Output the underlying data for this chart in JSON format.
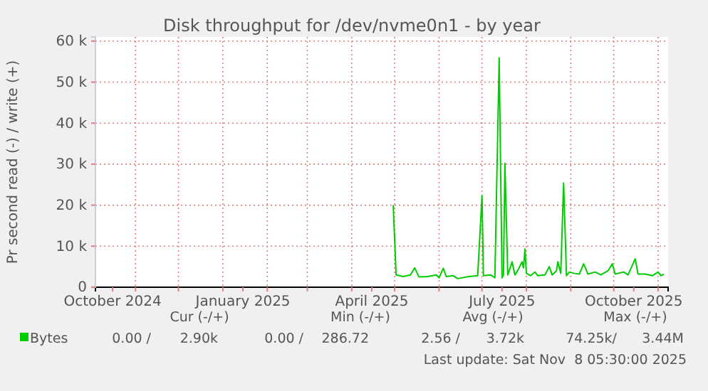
{
  "chart_data": {
    "type": "line",
    "title": "Disk throughput for /dev/nvme0n1 - by year",
    "ylabel": "Pr second read (-) / write (+)",
    "xlim": [
      "2024-10-04",
      "2025-11-08"
    ],
    "xticks": [
      {
        "value": "2024-10-16",
        "label": "October 2024"
      },
      {
        "value": "2024-11-01",
        "label": null
      },
      {
        "value": "2024-12-01",
        "label": null
      },
      {
        "value": "2025-01-15",
        "label": "January 2025"
      },
      {
        "value": "2025-01-01",
        "label": null
      },
      {
        "value": "2025-02-01",
        "label": null
      },
      {
        "value": "2025-03-01",
        "label": null
      },
      {
        "value": "2025-04-15",
        "label": "April 2025"
      },
      {
        "value": "2025-04-01",
        "label": null
      },
      {
        "value": "2025-05-01",
        "label": null
      },
      {
        "value": "2025-06-01",
        "label": null
      },
      {
        "value": "2025-07-15",
        "label": "July 2025"
      },
      {
        "value": "2025-07-01",
        "label": null
      },
      {
        "value": "2025-08-01",
        "label": null
      },
      {
        "value": "2025-09-01",
        "label": null
      },
      {
        "value": "2025-10-15",
        "label": "October 2025"
      },
      {
        "value": "2025-10-01",
        "label": null
      },
      {
        "value": "2025-11-01",
        "label": null
      }
    ],
    "ylim": [
      0,
      61000
    ],
    "yticks": [
      0,
      {
        "value": 10000,
        "label": "10 k"
      },
      {
        "value": 20000,
        "label": "20 k"
      },
      {
        "value": 30000,
        "label": "30 k"
      },
      {
        "value": 40000,
        "label": "40 k"
      },
      {
        "value": 50000,
        "label": "50 k"
      },
      {
        "value": 60000,
        "label": "60 k"
      }
    ],
    "grid": true,
    "legend": "bottom",
    "marker": "none",
    "line_style": "solid",
    "x": [
      "2025-04-30",
      "2025-05-02",
      "2025-05-07",
      "2025-05-12",
      "2025-05-15",
      "2025-05-18",
      "2025-05-24",
      "2025-05-30",
      "2025-06-01",
      "2025-06-04",
      "2025-06-06",
      "2025-06-11",
      "2025-06-14",
      "2025-06-22",
      "2025-06-28",
      "2025-07-01",
      "2025-07-02",
      "2025-07-07",
      "2025-07-10",
      "2025-07-13",
      "2025-07-15",
      "2025-07-16",
      "2025-07-17",
      "2025-07-19",
      "2025-07-20",
      "2025-07-22",
      "2025-07-24",
      "2025-07-26",
      "2025-07-29",
      "2025-07-30",
      "2025-07-31",
      "2025-08-01",
      "2025-08-04",
      "2025-08-07",
      "2025-08-09",
      "2025-08-14",
      "2025-08-17",
      "2025-08-19",
      "2025-08-22",
      "2025-08-23",
      "2025-08-25",
      "2025-08-27",
      "2025-08-29",
      "2025-08-31",
      "2025-09-03",
      "2025-09-07",
      "2025-09-10",
      "2025-09-13",
      "2025-09-18",
      "2025-09-22",
      "2025-09-27",
      "2025-09-30",
      "2025-10-02",
      "2025-10-08",
      "2025-10-11",
      "2025-10-16",
      "2025-10-18",
      "2025-10-23",
      "2025-10-28",
      "2025-11-01",
      "2025-11-03",
      "2025-11-05"
    ],
    "series": [
      {
        "name": "Bytes",
        "color": "#00cc00",
        "values": [
          20000,
          3000,
          2600,
          3000,
          4700,
          2500,
          2600,
          3000,
          2300,
          4600,
          2600,
          2800,
          2100,
          2600,
          2800,
          22300,
          2800,
          3000,
          2300,
          55900,
          2300,
          3000,
          30200,
          3000,
          4000,
          6200,
          3000,
          4100,
          6200,
          4700,
          9300,
          3400,
          2800,
          3700,
          2800,
          3000,
          5000,
          3000,
          4000,
          6200,
          3400,
          25400,
          2800,
          3700,
          3400,
          3200,
          5700,
          3200,
          3700,
          3000,
          4000,
          5700,
          3200,
          3700,
          3000,
          6900,
          3200,
          3200,
          2800,
          3700,
          2800,
          3200
        ]
      }
    ],
    "annotations": [
      "Cur (-/+)",
      "Min (-/+)",
      "Avg (-/+)",
      "Max (-/+)",
      "0.00 /",
      "2.90k",
      "0.00 /",
      "286.72",
      "2.56 /",
      "3.72k",
      "74.25k/",
      "3.44M",
      "Last update: Sat Nov  8 05:30:00 2025"
    ]
  }
}
